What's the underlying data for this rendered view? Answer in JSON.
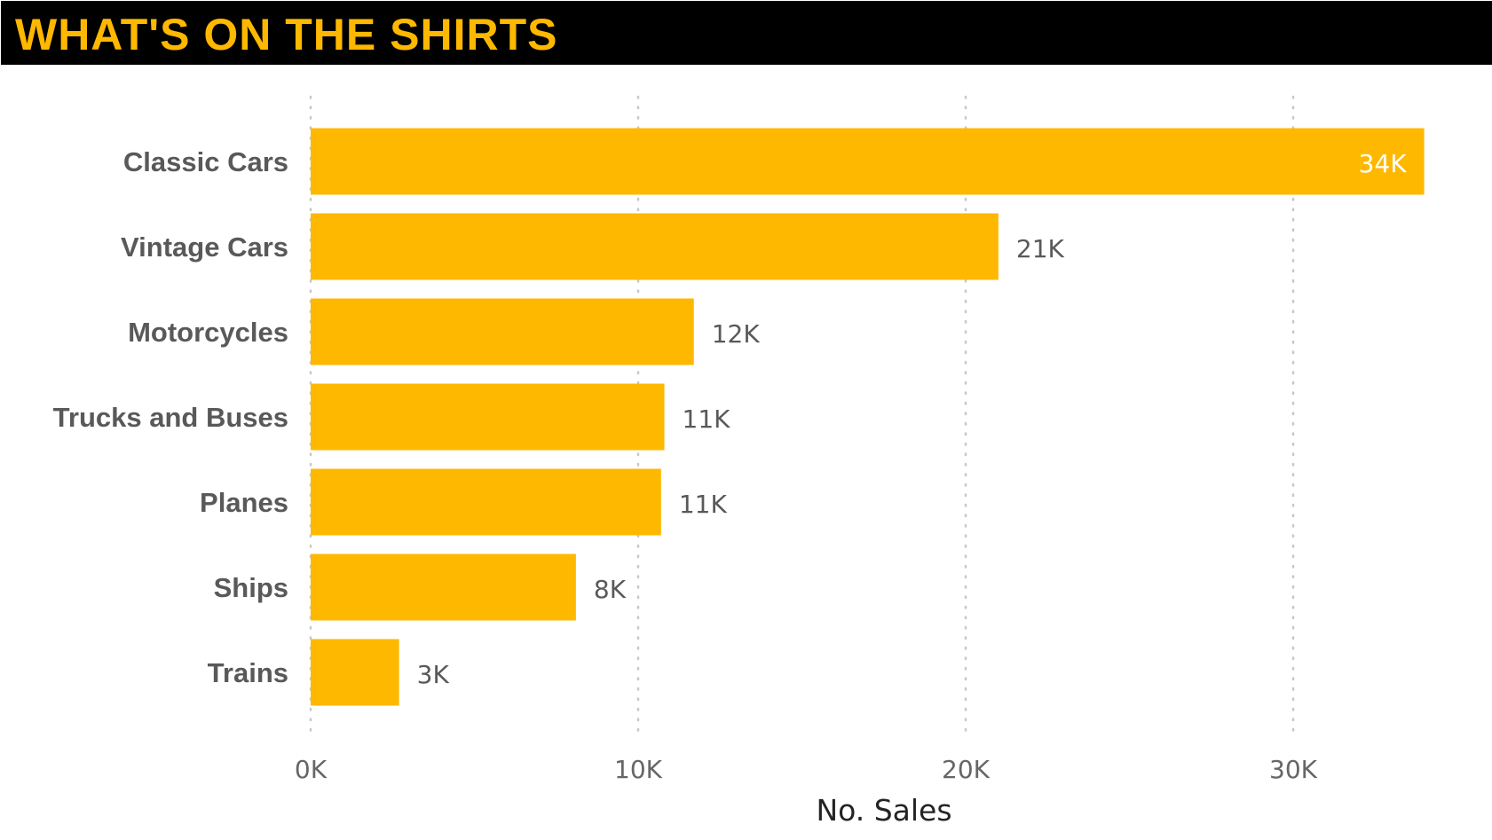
{
  "title": "WHAT'S ON THE SHIRTS",
  "colors": {
    "bar": "#FFB800",
    "title_background": "#000000",
    "title_text": "#FFB800"
  },
  "chart_data": {
    "type": "bar",
    "orientation": "horizontal",
    "categories": [
      "Classic Cars",
      "Vintage Cars",
      "Motorcycles",
      "Trucks and Buses",
      "Planes",
      "Ships",
      "Trains"
    ],
    "values": [
      34000,
      21000,
      11700,
      10800,
      10700,
      8100,
      2700
    ],
    "data_labels": [
      "34K",
      "21K",
      "12K",
      "11K",
      "11K",
      "8K",
      "3K"
    ],
    "xlabel": "No. Sales",
    "ylabel": "",
    "xlim": [
      0,
      36000
    ],
    "x_ticks": [
      0,
      10000,
      20000,
      30000
    ],
    "x_tick_labels": [
      "0K",
      "10K",
      "20K",
      "30K"
    ],
    "grid": true
  }
}
